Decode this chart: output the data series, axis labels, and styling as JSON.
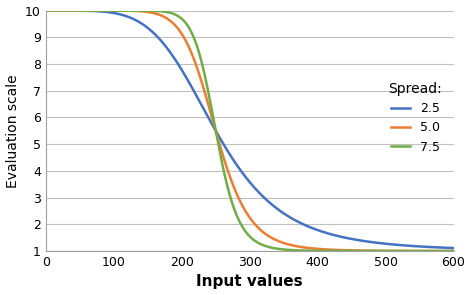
{
  "title": "",
  "xlabel": "Input values",
  "ylabel": "Evaluation scale",
  "xlim": [
    0,
    600
  ],
  "ylim": [
    1,
    10
  ],
  "yticks": [
    1,
    2,
    3,
    4,
    5,
    6,
    7,
    8,
    9,
    10
  ],
  "xticks": [
    0,
    100,
    200,
    300,
    400,
    500,
    600
  ],
  "legend_title": "Spread:",
  "series": [
    {
      "spread": 2.5,
      "color": "#4472C4",
      "label": "2.5"
    },
    {
      "spread": 5.0,
      "color": "#ED7D31",
      "label": "5.0"
    },
    {
      "spread": 7.5,
      "color": "#70AD47",
      "label": "7.5"
    }
  ],
  "midpoint": 250,
  "ymin": 1,
  "ymax": 10,
  "background_color": "#ffffff",
  "grid_color": "#C0C0C0",
  "xlabel_fontsize": 11,
  "ylabel_fontsize": 10,
  "xlabel_bold": true,
  "linewidth": 1.8
}
